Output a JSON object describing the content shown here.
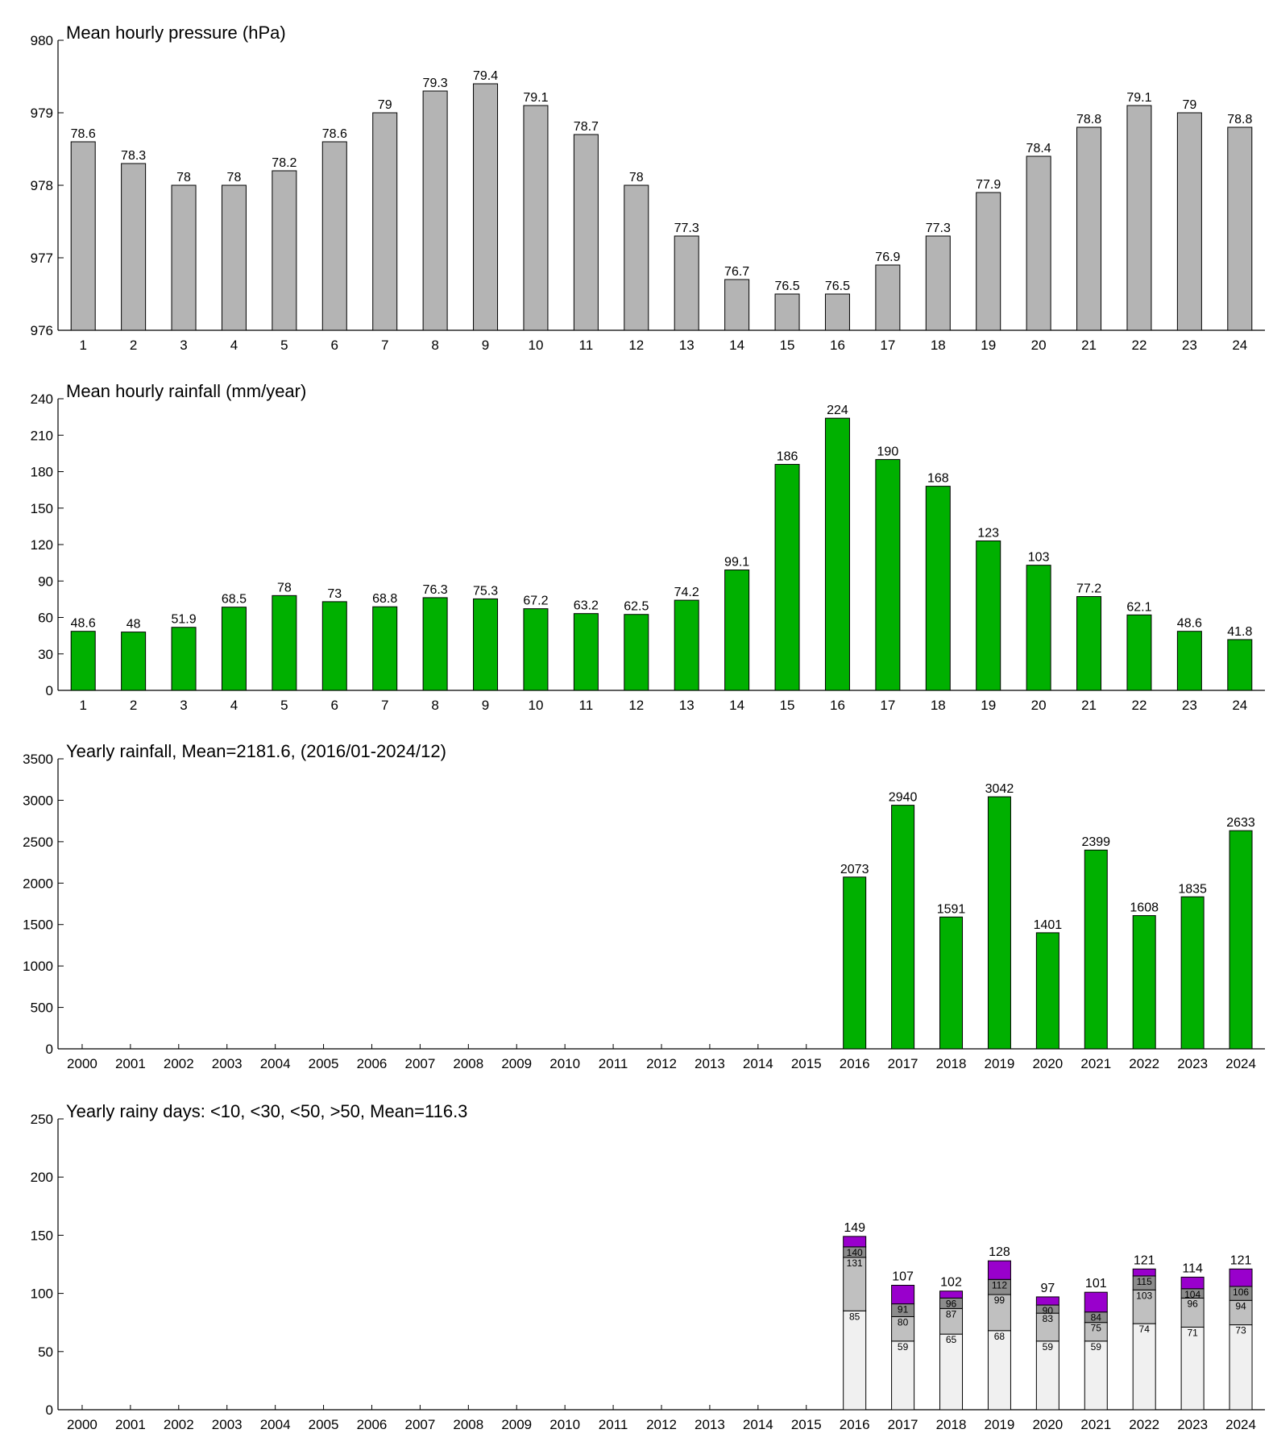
{
  "chart_data": [
    {
      "type": "bar",
      "title": "Mean hourly pressure (hPa)",
      "categories": [
        "1",
        "2",
        "3",
        "4",
        "5",
        "6",
        "7",
        "8",
        "9",
        "10",
        "11",
        "12",
        "13",
        "14",
        "15",
        "16",
        "17",
        "18",
        "19",
        "20",
        "21",
        "22",
        "23",
        "24"
      ],
      "values": [
        978.6,
        978.3,
        978,
        978,
        978.2,
        978.6,
        979,
        979.3,
        979.4,
        979.1,
        978.7,
        978,
        977.3,
        976.7,
        976.5,
        976.5,
        976.9,
        977.3,
        977.9,
        978.4,
        978.8,
        979.1,
        979,
        978.8
      ],
      "data_labels": [
        "78.6",
        "78.3",
        "78",
        "78",
        "78.2",
        "78.6",
        "79",
        "79.3",
        "79.4",
        "79.1",
        "78.7",
        "78",
        "77.3",
        "76.7",
        "76.5",
        "76.5",
        "76.9",
        "77.3",
        "77.9",
        "78.4",
        "78.8",
        "79.1",
        "79",
        "78.8"
      ],
      "ylim": [
        976,
        980
      ],
      "yticks": [
        976,
        977,
        978,
        979,
        980
      ],
      "color": "#b4b4b4",
      "grid": false
    },
    {
      "type": "bar",
      "title": "Mean hourly rainfall (mm/year)",
      "categories": [
        "1",
        "2",
        "3",
        "4",
        "5",
        "6",
        "7",
        "8",
        "9",
        "10",
        "11",
        "12",
        "13",
        "14",
        "15",
        "16",
        "17",
        "18",
        "19",
        "20",
        "21",
        "22",
        "23",
        "24"
      ],
      "values": [
        48.6,
        48,
        51.9,
        68.5,
        78,
        73,
        68.8,
        76.3,
        75.3,
        67.2,
        63.2,
        62.5,
        74.2,
        99.1,
        186,
        224,
        190,
        168,
        123,
        103,
        77.2,
        62.1,
        48.6,
        41.8
      ],
      "data_labels": [
        "48.6",
        "48",
        "51.9",
        "68.5",
        "78",
        "73",
        "68.8",
        "76.3",
        "75.3",
        "67.2",
        "63.2",
        "62.5",
        "74.2",
        "99.1",
        "186",
        "224",
        "190",
        "168",
        "123",
        "103",
        "77.2",
        "62.1",
        "48.6",
        "41.8"
      ],
      "ylim": [
        0,
        240
      ],
      "yticks": [
        0,
        30,
        60,
        90,
        120,
        150,
        180,
        210,
        240
      ],
      "color": "#00b000",
      "grid": false
    },
    {
      "type": "bar",
      "title": "Yearly rainfall, Mean=2181.6, (2016/01-2024/12)",
      "categories": [
        "2000",
        "2001",
        "2002",
        "2003",
        "2004",
        "2005",
        "2006",
        "2007",
        "2008",
        "2009",
        "2010",
        "2011",
        "2012",
        "2013",
        "2014",
        "2015",
        "2016",
        "2017",
        "2018",
        "2019",
        "2020",
        "2021",
        "2022",
        "2023",
        "2024"
      ],
      "values": [
        null,
        null,
        null,
        null,
        null,
        null,
        null,
        null,
        null,
        null,
        null,
        null,
        null,
        null,
        null,
        null,
        2073,
        2940,
        1591,
        3042,
        1401,
        2399,
        1608,
        1835,
        2633
      ],
      "ylim": [
        0,
        3500
      ],
      "yticks": [
        0,
        500,
        1000,
        1500,
        2000,
        2500,
        3000,
        3500
      ],
      "color": "#00b000",
      "grid": false
    },
    {
      "type": "bar",
      "stacked": true,
      "title": "Yearly rainy days: <10, <30, <50, >50, Mean=116.3",
      "categories": [
        "2000",
        "2001",
        "2002",
        "2003",
        "2004",
        "2005",
        "2006",
        "2007",
        "2008",
        "2009",
        "2010",
        "2011",
        "2012",
        "2013",
        "2014",
        "2015",
        "2016",
        "2017",
        "2018",
        "2019",
        "2020",
        "2021",
        "2022",
        "2023",
        "2024"
      ],
      "cumulative": {
        "lt10": [
          null,
          null,
          null,
          null,
          null,
          null,
          null,
          null,
          null,
          null,
          null,
          null,
          null,
          null,
          null,
          null,
          85,
          59,
          65,
          68,
          59,
          59,
          74,
          71,
          73
        ],
        "lt30": [
          null,
          null,
          null,
          null,
          null,
          null,
          null,
          null,
          null,
          null,
          null,
          null,
          null,
          null,
          null,
          null,
          131,
          80,
          87,
          99,
          83,
          75,
          103,
          96,
          94
        ],
        "lt50": [
          null,
          null,
          null,
          null,
          null,
          null,
          null,
          null,
          null,
          null,
          null,
          null,
          null,
          null,
          null,
          null,
          140,
          91,
          96,
          112,
          90,
          84,
          115,
          104,
          106
        ],
        "total": [
          null,
          null,
          null,
          null,
          null,
          null,
          null,
          null,
          null,
          null,
          null,
          null,
          null,
          null,
          null,
          null,
          149,
          107,
          102,
          128,
          97,
          101,
          121,
          114,
          121
        ]
      },
      "colors": {
        "lt10": "#f0f0f0",
        "lt30": "#c0c0c0",
        "lt50": "#8c8c8c",
        "gt50": "#9900cc"
      },
      "ylim": [
        0,
        250
      ],
      "yticks": [
        0,
        50,
        100,
        150,
        200,
        250
      ],
      "grid": false
    }
  ]
}
